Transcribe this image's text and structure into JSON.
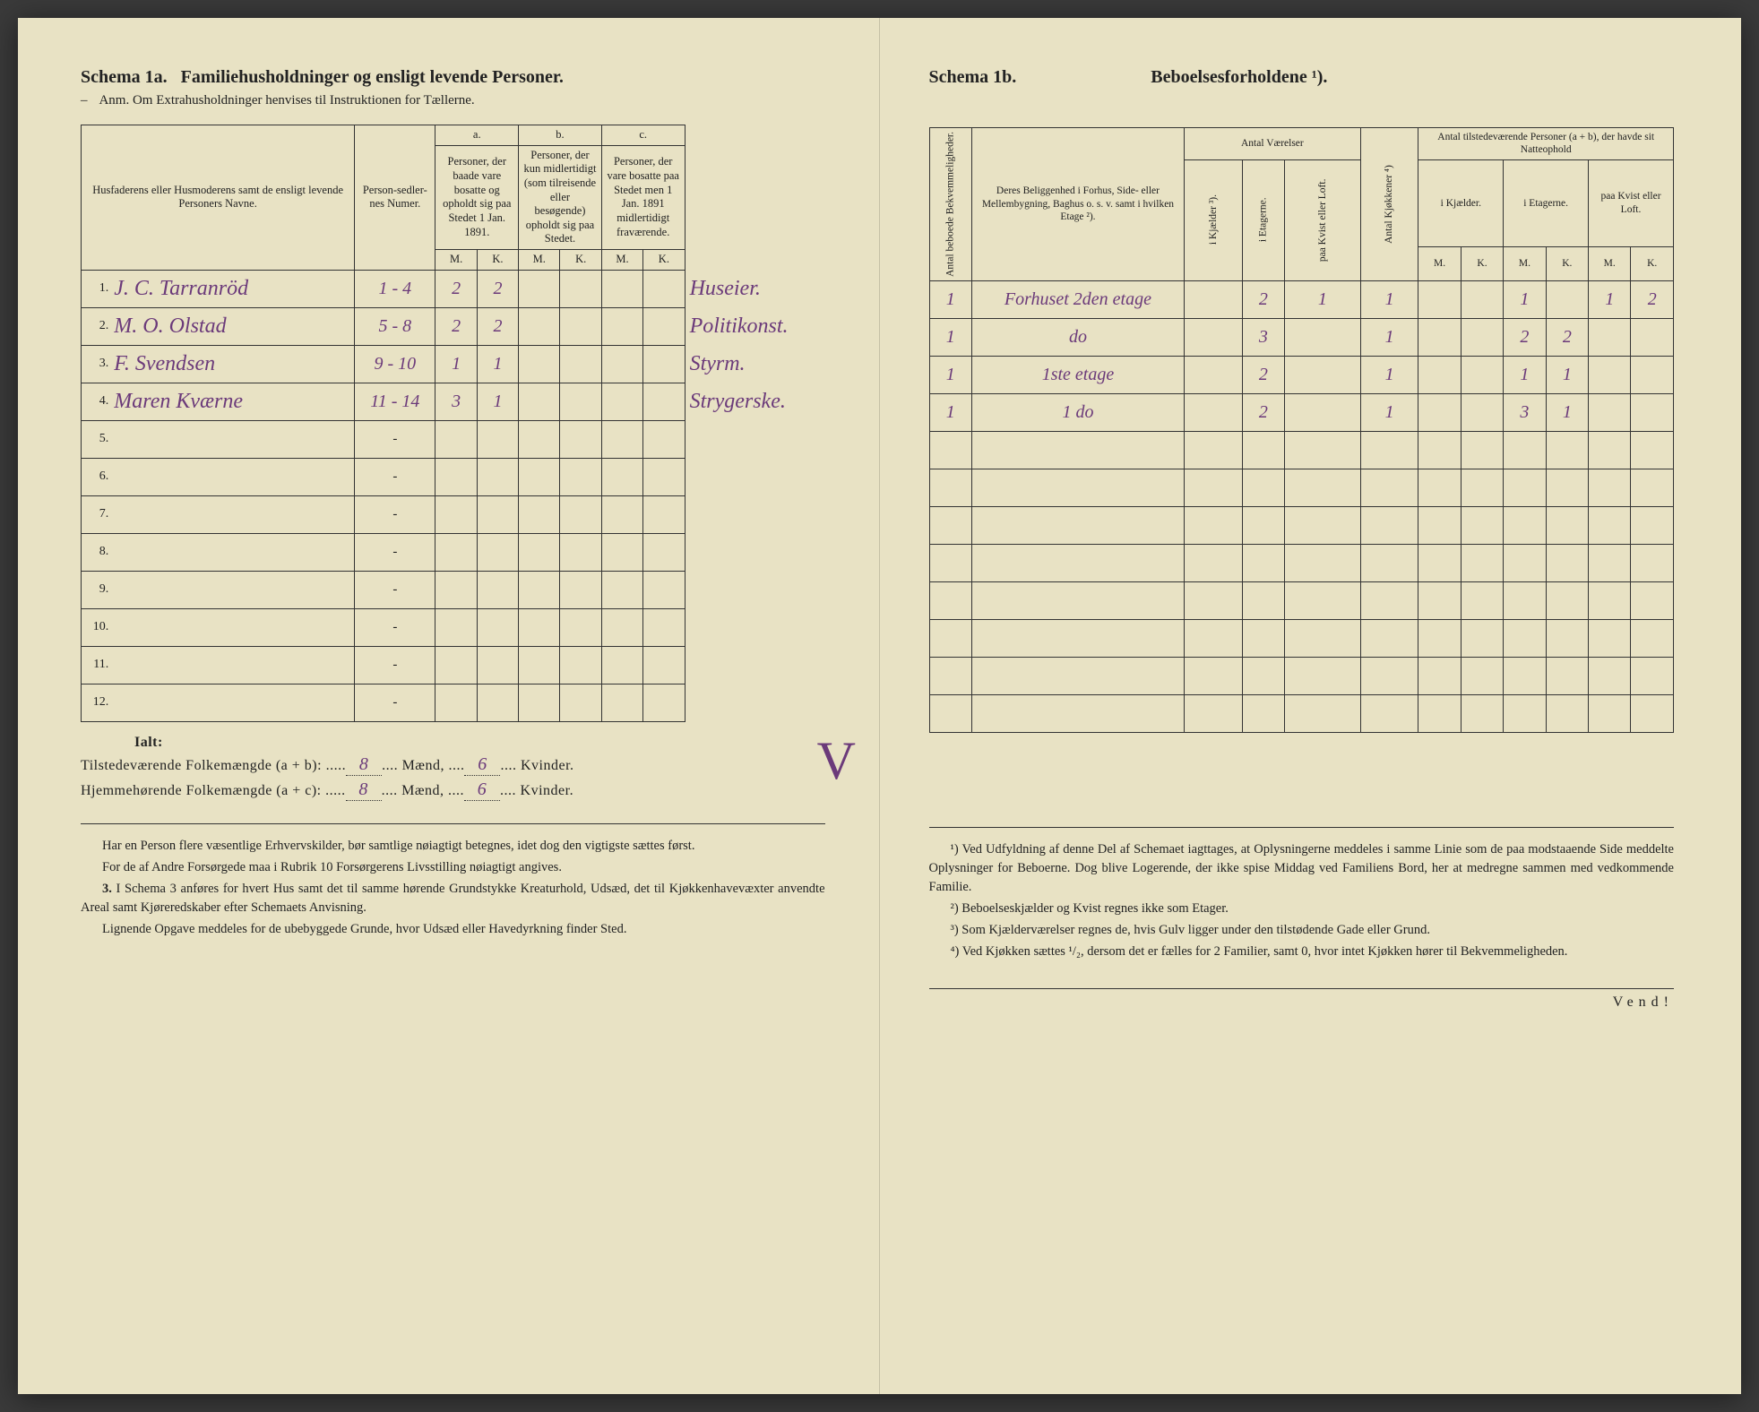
{
  "left": {
    "schema_label": "Schema 1a.",
    "schema_title": "Familiehusholdninger og ensligt levende Personer.",
    "subtitle_prefix": "Anm.",
    "subtitle": "Om Extrahusholdninger henvises til Instruktionen for Tællerne.",
    "headers": {
      "name": "Husfaderens eller Husmoderens samt de ensligt levende Personers Navne.",
      "nummer": "Person-sedler-nes Numer.",
      "a_label": "a.",
      "a_text": "Personer, der baade vare bosatte og opholdt sig paa Stedet 1 Jan. 1891.",
      "b_label": "b.",
      "b_text": "Personer, der kun midlertidigt (som tilreisende eller besøgende) opholdt sig paa Stedet.",
      "c_label": "c.",
      "c_text": "Personer, der vare bosatte paa Stedet men 1 Jan. 1891 midlertidigt fraværende.",
      "m": "M.",
      "k": "K."
    },
    "rows": [
      {
        "n": "1.",
        "name": "J. C. Tarranröd",
        "num": "1 - 4",
        "am": "2",
        "ak": "2",
        "bm": "",
        "bk": "",
        "cm": "",
        "ck": "",
        "occ": "Huseier."
      },
      {
        "n": "2.",
        "name": "M. O. Olstad",
        "num": "5 - 8",
        "am": "2",
        "ak": "2",
        "bm": "",
        "bk": "",
        "cm": "",
        "ck": "",
        "occ": "Politikonst."
      },
      {
        "n": "3.",
        "name": "F. Svendsen",
        "num": "9 - 10",
        "am": "1",
        "ak": "1",
        "bm": "",
        "bk": "",
        "cm": "",
        "ck": "",
        "occ": "Styrm."
      },
      {
        "n": "4.",
        "name": "Maren Kværne",
        "num": "11 - 14",
        "am": "3",
        "ak": "1",
        "bm": "",
        "bk": "",
        "cm": "",
        "ck": "",
        "occ": "Strygerske."
      }
    ],
    "empty_rows": [
      "5.",
      "6.",
      "7.",
      "8.",
      "9.",
      "10.",
      "11.",
      "12."
    ],
    "totals": {
      "ialt": "Ialt:",
      "line1_label": "Tilstedeværende Folkemængde (a + b):",
      "line1_m": "8",
      "line1_k": "6",
      "line2_label": "Hjemmehørende Folkemængde (a + c):",
      "line2_m": "8",
      "line2_k": "6",
      "maend": "Mænd,",
      "kvinder": "Kvinder."
    },
    "foot": {
      "p1": "Har en Person flere væsentlige Erhvervskilder, bør samtlige nøiagtigt betegnes, idet dog den vigtigste sættes først.",
      "p2": "For de af Andre Forsørgede maa i Rubrik 10 Forsørgerens Livsstilling nøiagtigt angives.",
      "p3_num": "3.",
      "p3": "I Schema 3 anføres for hvert Hus samt det til samme hørende Grundstykke Kreaturhold, Udsæd, det til Kjøkkenhavevæxter anvendte Areal samt Kjøreredskaber efter Schemaets Anvisning.",
      "p4": "Lignende Opgave meddeles for de ubebyggede Grunde, hvor Udsæd eller Havedyrkning finder Sted."
    }
  },
  "right": {
    "schema_label": "Schema 1b.",
    "schema_title": "Beboelsesforholdene ¹).",
    "headers": {
      "antal_bekv": "Antal beboede Bekvemmeligheder.",
      "beligg": "Deres Beliggenhed i Forhus, Side- eller Mellembygning, Baghus o. s. v. samt i hvilken Etage ²).",
      "antal_vaer": "Antal Værelser",
      "kjaelder": "i Kjælder ³).",
      "etagerne": "i Etagerne.",
      "kvist": "paa Kvist eller Loft.",
      "kjokken": "Antal Kjøkkener ⁴)",
      "tilstede": "Antal tilstedeværende Personer (a + b), der havde sit Natteophold",
      "ikjael": "i Kjælder.",
      "ietag": "i Etagerne.",
      "paakvist": "paa Kvist eller Loft.",
      "m": "M.",
      "k": "K."
    },
    "rows": [
      {
        "bekv": "1",
        "beligg": "Forhuset 2den etage",
        "kj": "",
        "et": "2",
        "kv": "1",
        "kok": "1",
        "km": "",
        "kk": "",
        "em": "1",
        "ek": "",
        "lm": "1",
        "lk": "2"
      },
      {
        "bekv": "1",
        "beligg": "do",
        "kj": "",
        "et": "3",
        "kv": "",
        "kok": "1",
        "km": "",
        "kk": "",
        "em": "2",
        "ek": "2",
        "lm": "",
        "lk": ""
      },
      {
        "bekv": "1",
        "beligg": "1ste etage",
        "kj": "",
        "et": "2",
        "kv": "",
        "kok": "1",
        "km": "",
        "kk": "",
        "em": "1",
        "ek": "1",
        "lm": "",
        "lk": ""
      },
      {
        "bekv": "1",
        "beligg": "1 do",
        "kj": "",
        "et": "2",
        "kv": "",
        "kok": "1",
        "km": "",
        "kk": "",
        "em": "3",
        "ek": "1",
        "lm": "",
        "lk": ""
      }
    ],
    "empty_count": 8,
    "foot": {
      "p1": "¹) Ved Udfyldning af denne Del af Schemaet iagttages, at Oplysningerne meddeles i samme Linie som de paa modstaaende Side meddelte Oplysninger for Beboerne. Dog blive Logerende, der ikke spise Middag ved Familiens Bord, her at medregne sammen med vedkommende Familie.",
      "p2": "²) Beboelseskjælder og Kvist regnes ikke som Etager.",
      "p3": "³) Som Kjælderværelser regnes de, hvis Gulv ligger under den tilstødende Gade eller Grund.",
      "p4": "⁴) Ved Kjøkken sættes ¹/₂, dersom det er fælles for 2 Familier, samt 0, hvor intet Kjøkken hører til Bekvemmeligheden."
    },
    "vend": "Vend!"
  }
}
